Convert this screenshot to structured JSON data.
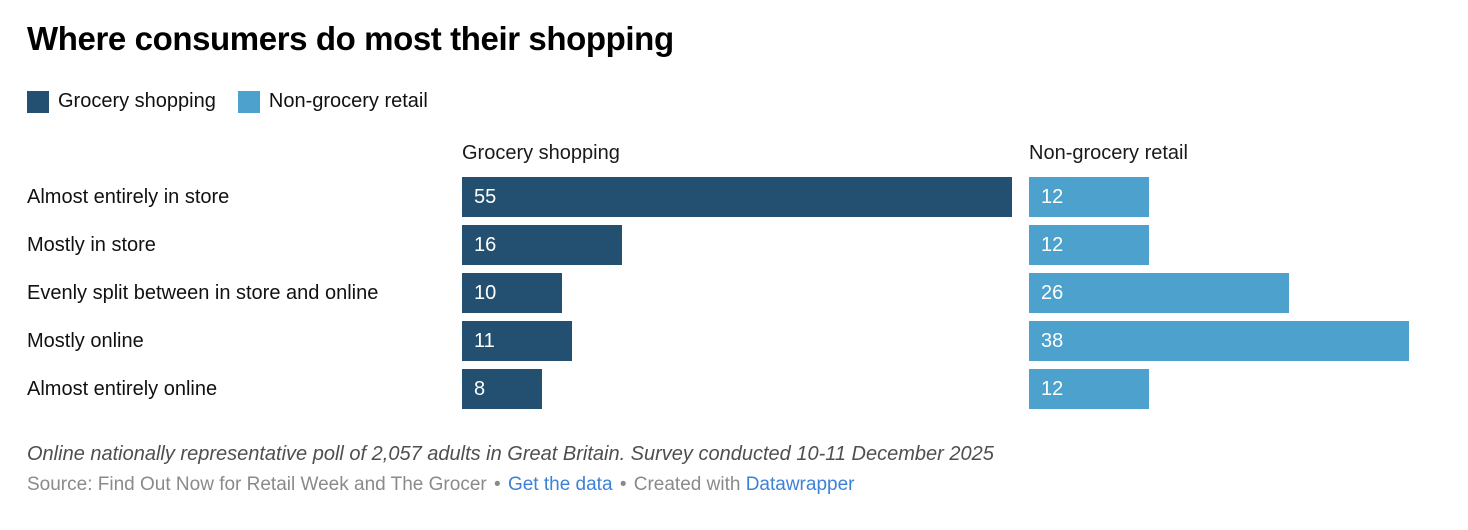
{
  "chart_data": {
    "type": "bar",
    "orientation": "horizontal",
    "title": "Where consumers do most their shopping",
    "xlabel": "",
    "ylabel": "",
    "xlim": [
      0,
      55
    ],
    "grid": false,
    "legend_position": "top-left",
    "value_labels": "inside-bar-left-white",
    "categories": [
      "Almost entirely in store",
      "Mostly in store",
      "Evenly split between in store and online",
      "Mostly online",
      "Almost entirely online"
    ],
    "series": [
      {
        "name": "Grocery shopping",
        "color": "#235070",
        "values": [
          55,
          16,
          10,
          11,
          8
        ]
      },
      {
        "name": "Non-grocery retail",
        "color": "#4da1cd",
        "values": [
          12,
          12,
          26,
          38,
          12
        ]
      }
    ]
  },
  "footer": {
    "footnote": "Online nationally representative poll of 2,057 adults in Great Britain. Survey conducted 10-11 December 2025",
    "source": "Source: Find Out Now for Retail Week and The Grocer",
    "separator": "•",
    "get_data_label": "Get the data",
    "created_with_label": "Created with",
    "datawrapper_label": "Datawrapper"
  },
  "colors": {
    "link_blue": "#3d82d6",
    "grocery_dark_blue": "#235070",
    "non_grocery_light_blue": "#4da1cd",
    "footnote_gray": "#4f4f4f",
    "source_gray": "#8a8a8a"
  }
}
